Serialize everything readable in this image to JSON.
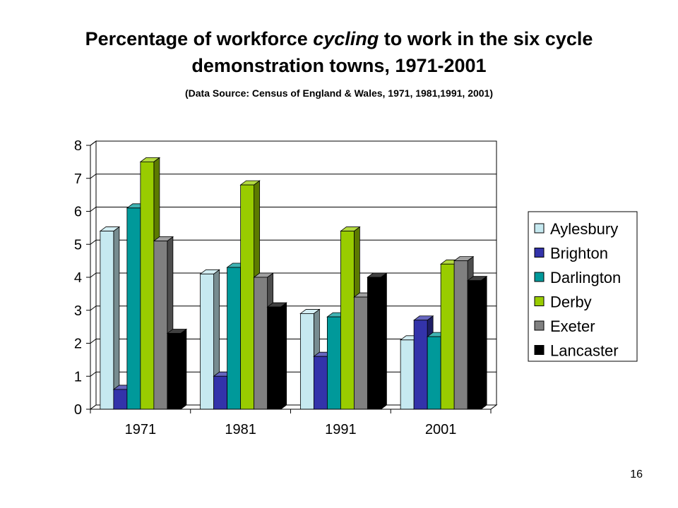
{
  "slide": {
    "title_before": "Percentage of workforce ",
    "title_em": "cycling",
    "title_after": " to work in the six cycle demonstration towns, 1971-2001",
    "subtitle": "(Data Source: Census of England & Wales, 1971, 1981,1991, 2001)",
    "page_number": "16"
  },
  "chart_data": {
    "type": "bar",
    "style": "3d-clustered",
    "categories": [
      "1971",
      "1981",
      "1991",
      "2001"
    ],
    "series": [
      {
        "name": "Aylesbury",
        "color": "#c6e9f0",
        "values": [
          5.4,
          4.1,
          2.9,
          2.1
        ]
      },
      {
        "name": "Brighton",
        "color": "#3333aa",
        "values": [
          0.6,
          1.0,
          1.6,
          2.7
        ]
      },
      {
        "name": "Darlington",
        "color": "#00999a",
        "values": [
          6.1,
          4.3,
          2.8,
          2.2
        ]
      },
      {
        "name": "Derby",
        "color": "#99cc00",
        "values": [
          7.5,
          6.8,
          5.4,
          4.4
        ]
      },
      {
        "name": "Exeter",
        "color": "#808080",
        "values": [
          5.1,
          4.0,
          3.4,
          4.5
        ]
      },
      {
        "name": "Lancaster",
        "color": "#000000",
        "values": [
          2.3,
          3.1,
          4.0,
          3.9
        ]
      }
    ],
    "y_ticks": [
      "0",
      "1",
      "2",
      "3",
      "4",
      "5",
      "6",
      "7",
      "8"
    ],
    "ylim": [
      0,
      8
    ],
    "grid": true,
    "legend_position": "right"
  }
}
